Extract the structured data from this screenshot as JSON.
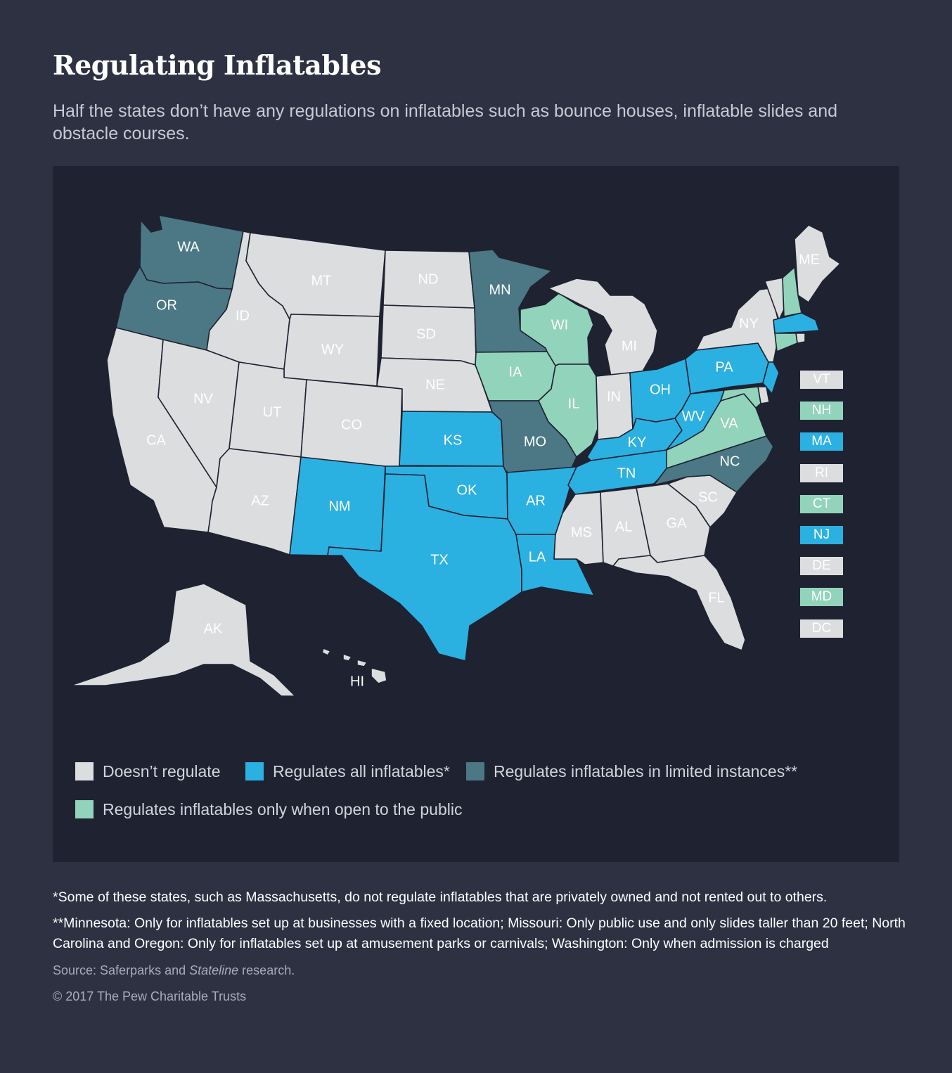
{
  "header": {
    "title": "Regulating Inflatables",
    "subtitle": "Half the states don’t have any regulations on inflatables such as bounce houses, inflatable slides and obstacle courses."
  },
  "colors": {
    "background": "#2d3142",
    "map_panel": "#1f2231",
    "doesnt_regulate": "#dcdddf",
    "regulates_all": "#2bb0e2",
    "limited": "#4b7884",
    "public_only": "#92d3bb"
  },
  "categories": {
    "none": "Doesn’t regulate",
    "all": "Regulates all inflatables*",
    "limited": "Regulates inflatables in limited instances**",
    "public": "Regulates inflatables only when open to the public"
  },
  "states": {
    "WA": "limited",
    "OR": "limited",
    "CA": "none",
    "ID": "none",
    "NV": "none",
    "MT": "none",
    "WY": "none",
    "UT": "none",
    "AZ": "none",
    "CO": "none",
    "NM": "all",
    "ND": "none",
    "SD": "none",
    "NE": "none",
    "KS": "all",
    "OK": "all",
    "TX": "all",
    "MN": "limited",
    "IA": "public",
    "MO": "limited",
    "AR": "all",
    "LA": "all",
    "WI": "public",
    "IL": "public",
    "MI": "none",
    "IN": "none",
    "OH": "all",
    "KY": "all",
    "TN": "all",
    "MS": "none",
    "AL": "none",
    "GA": "none",
    "FL": "none",
    "SC": "none",
    "NC": "limited",
    "VA": "public",
    "WV": "all",
    "PA": "all",
    "NY": "none",
    "ME": "none",
    "AK": "none",
    "HI": "none",
    "VT": "none",
    "NH": "public",
    "MA": "all",
    "RI": "none",
    "CT": "public",
    "NJ": "all",
    "DE": "none",
    "MD": "public",
    "DC": "none"
  },
  "small_states": [
    "VT",
    "NH",
    "MA",
    "RI",
    "CT",
    "NJ",
    "DE",
    "MD",
    "DC"
  ],
  "footnotes": {
    "note1": "*Some of these states, such as Massachusetts, do not regulate inflatables that are privately owned and not rented out to others.",
    "note2": "**Minnesota: Only for inflatables set up at businesses with a fixed location; Missouri: Only public use and only slides taller than 20 feet; North Carolina and Oregon: Only for inflatables set up at amusement parks or carnivals; Washington: Only when admission is charged",
    "source_prefix": "Source: Saferparks and ",
    "source_italic": "Stateline",
    "source_suffix": " research.",
    "copyright": "© 2017 The Pew Charitable Trusts"
  }
}
